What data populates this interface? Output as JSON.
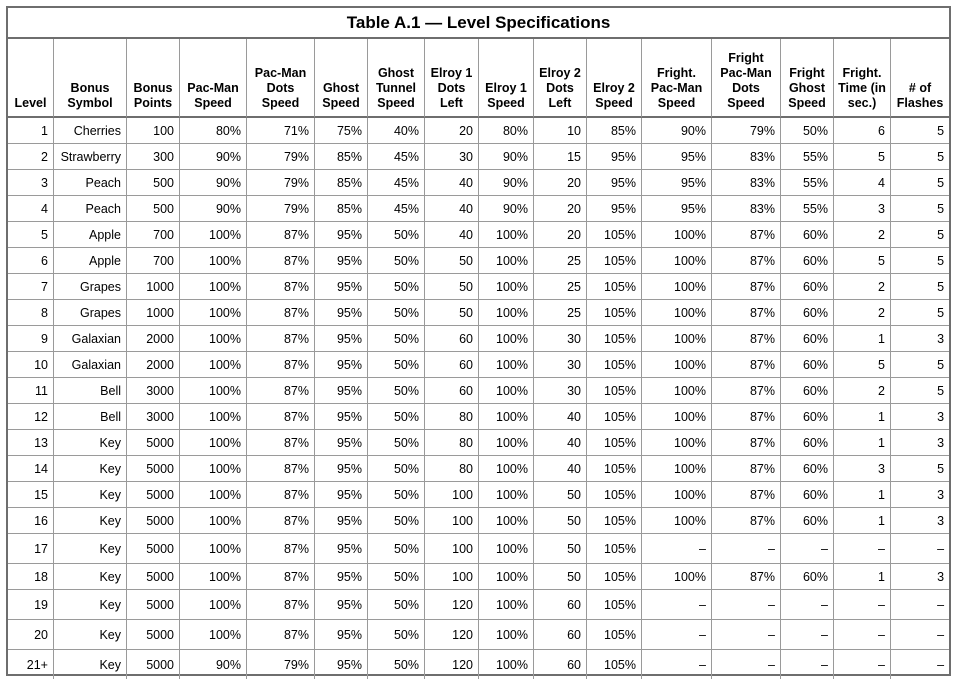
{
  "title": "Table A.1 — Level Specifications",
  "columns": [
    "Level",
    "Bonus Symbol",
    "Bonus Points",
    "Pac-Man Speed",
    "Pac-Man Dots Speed",
    "Ghost Speed",
    "Ghost Tunnel Speed",
    "Elroy 1 Dots Left",
    "Elroy 1 Speed",
    "Elroy 2 Dots Left",
    "Elroy 2 Speed",
    "Fright. Pac-Man Speed",
    "Fright Pac-Man Dots Speed",
    "Fright Ghost Speed",
    "Fright. Time (in sec.)",
    "# of Flashes"
  ],
  "rows": [
    [
      "1",
      "Cherries",
      "100",
      "80%",
      "71%",
      "75%",
      "40%",
      "20",
      "80%",
      "10",
      "85%",
      "90%",
      "79%",
      "50%",
      "6",
      "5"
    ],
    [
      "2",
      "Strawberry",
      "300",
      "90%",
      "79%",
      "85%",
      "45%",
      "30",
      "90%",
      "15",
      "95%",
      "95%",
      "83%",
      "55%",
      "5",
      "5"
    ],
    [
      "3",
      "Peach",
      "500",
      "90%",
      "79%",
      "85%",
      "45%",
      "40",
      "90%",
      "20",
      "95%",
      "95%",
      "83%",
      "55%",
      "4",
      "5"
    ],
    [
      "4",
      "Peach",
      "500",
      "90%",
      "79%",
      "85%",
      "45%",
      "40",
      "90%",
      "20",
      "95%",
      "95%",
      "83%",
      "55%",
      "3",
      "5"
    ],
    [
      "5",
      "Apple",
      "700",
      "100%",
      "87%",
      "95%",
      "50%",
      "40",
      "100%",
      "20",
      "105%",
      "100%",
      "87%",
      "60%",
      "2",
      "5"
    ],
    [
      "6",
      "Apple",
      "700",
      "100%",
      "87%",
      "95%",
      "50%",
      "50",
      "100%",
      "25",
      "105%",
      "100%",
      "87%",
      "60%",
      "5",
      "5"
    ],
    [
      "7",
      "Grapes",
      "1000",
      "100%",
      "87%",
      "95%",
      "50%",
      "50",
      "100%",
      "25",
      "105%",
      "100%",
      "87%",
      "60%",
      "2",
      "5"
    ],
    [
      "8",
      "Grapes",
      "1000",
      "100%",
      "87%",
      "95%",
      "50%",
      "50",
      "100%",
      "25",
      "105%",
      "100%",
      "87%",
      "60%",
      "2",
      "5"
    ],
    [
      "9",
      "Galaxian",
      "2000",
      "100%",
      "87%",
      "95%",
      "50%",
      "60",
      "100%",
      "30",
      "105%",
      "100%",
      "87%",
      "60%",
      "1",
      "3"
    ],
    [
      "10",
      "Galaxian",
      "2000",
      "100%",
      "87%",
      "95%",
      "50%",
      "60",
      "100%",
      "30",
      "105%",
      "100%",
      "87%",
      "60%",
      "5",
      "5"
    ],
    [
      "11",
      "Bell",
      "3000",
      "100%",
      "87%",
      "95%",
      "50%",
      "60",
      "100%",
      "30",
      "105%",
      "100%",
      "87%",
      "60%",
      "2",
      "5"
    ],
    [
      "12",
      "Bell",
      "3000",
      "100%",
      "87%",
      "95%",
      "50%",
      "80",
      "100%",
      "40",
      "105%",
      "100%",
      "87%",
      "60%",
      "1",
      "3"
    ],
    [
      "13",
      "Key",
      "5000",
      "100%",
      "87%",
      "95%",
      "50%",
      "80",
      "100%",
      "40",
      "105%",
      "100%",
      "87%",
      "60%",
      "1",
      "3"
    ],
    [
      "14",
      "Key",
      "5000",
      "100%",
      "87%",
      "95%",
      "50%",
      "80",
      "100%",
      "40",
      "105%",
      "100%",
      "87%",
      "60%",
      "3",
      "5"
    ],
    [
      "15",
      "Key",
      "5000",
      "100%",
      "87%",
      "95%",
      "50%",
      "100",
      "100%",
      "50",
      "105%",
      "100%",
      "87%",
      "60%",
      "1",
      "3"
    ],
    [
      "16",
      "Key",
      "5000",
      "100%",
      "87%",
      "95%",
      "50%",
      "100",
      "100%",
      "50",
      "105%",
      "100%",
      "87%",
      "60%",
      "1",
      "3"
    ],
    [
      "17",
      "Key",
      "5000",
      "100%",
      "87%",
      "95%",
      "50%",
      "100",
      "100%",
      "50",
      "105%",
      "–",
      "–",
      "–",
      "–",
      "–"
    ],
    [
      "18",
      "Key",
      "5000",
      "100%",
      "87%",
      "95%",
      "50%",
      "100",
      "100%",
      "50",
      "105%",
      "100%",
      "87%",
      "60%",
      "1",
      "3"
    ],
    [
      "19",
      "Key",
      "5000",
      "100%",
      "87%",
      "95%",
      "50%",
      "120",
      "100%",
      "60",
      "105%",
      "–",
      "–",
      "–",
      "–",
      "–"
    ],
    [
      "20",
      "Key",
      "5000",
      "100%",
      "87%",
      "95%",
      "50%",
      "120",
      "100%",
      "60",
      "105%",
      "–",
      "–",
      "–",
      "–",
      "–"
    ],
    [
      "21+",
      "Key",
      "5000",
      "90%",
      "79%",
      "95%",
      "50%",
      "120",
      "100%",
      "60",
      "105%",
      "–",
      "–",
      "–",
      "–",
      "–"
    ]
  ]
}
